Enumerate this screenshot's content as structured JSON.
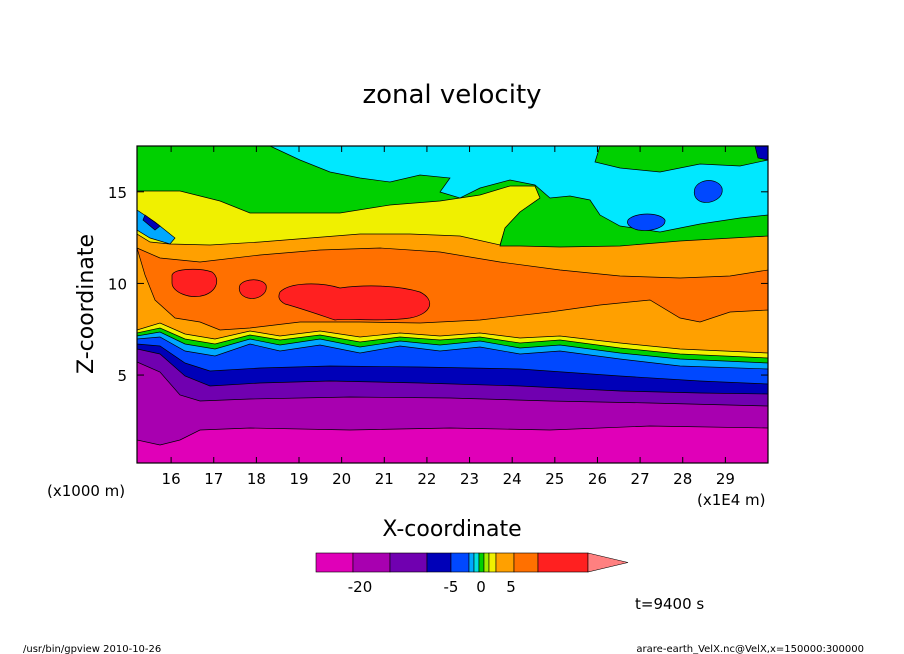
{
  "chart_data": {
    "type": "heatmap",
    "title": "zonal velocity",
    "xlabel": "X-coordinate",
    "ylabel": "Z-coordinate",
    "x_unit_left": "(x1000 m)",
    "x_unit_right": "(x1E4 m)",
    "x_ticks": [
      "16",
      "17",
      "18",
      "19",
      "20",
      "21",
      "22",
      "23",
      "24",
      "25",
      "26",
      "27",
      "28",
      "29"
    ],
    "y_ticks": [
      "5",
      "10",
      "15"
    ],
    "xlim": [
      15.2,
      30.0
    ],
    "ylim": [
      0.2,
      17.5
    ],
    "colorbar_labels": [
      "-20",
      "-5",
      "0",
      "5"
    ],
    "colorbar_colors": [
      "#e000b8",
      "#a800b0",
      "#7000b0",
      "#0000b8",
      "#0048ff",
      "#00a8ff",
      "#00e0e0",
      "#00d000",
      "#f0f000",
      "#ffa000",
      "#ff7000",
      "#ff2020"
    ],
    "time_label": "t=9400 s",
    "footer_left": "/usr/bin/gpview   2010-10-26",
    "footer_right": "arare-earth_VelX.nc@VelX,x=150000:300000",
    "layers_bottom_to_top": [
      {
        "name": "-25 to -20",
        "color": "#e000b8"
      },
      {
        "name": "-20 to -15",
        "color": "#a800b0"
      },
      {
        "name": "-15 to -10",
        "color": "#7000b0"
      },
      {
        "name": "-10 to -5",
        "color": "#0000b8"
      },
      {
        "name": "-5 to -2",
        "color": "#0048ff"
      },
      {
        "name": "-2 to 0",
        "color": "#00a8ff"
      },
      {
        "name": "0 to 2",
        "color": "#00d000"
      },
      {
        "name": "2 to 5",
        "color": "#f0f000"
      },
      {
        "name": "5 to 10",
        "color": "#ffa000"
      },
      {
        "name": "10 to 15",
        "color": "#ff7000"
      },
      {
        "name": "15 to 20",
        "color": "#ff2020"
      }
    ]
  }
}
